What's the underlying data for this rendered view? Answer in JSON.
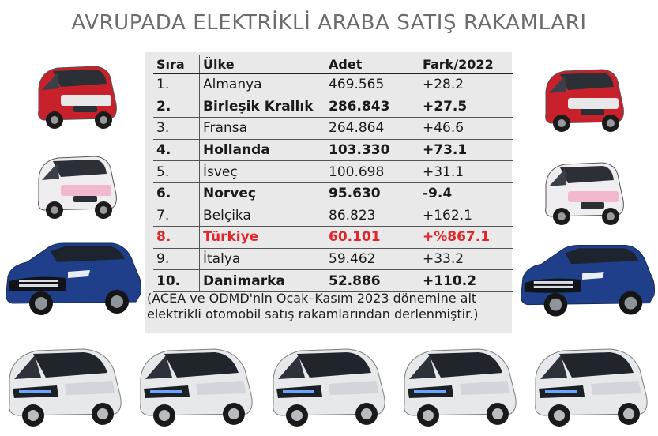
{
  "title": "AVRUPADA ELEKTRİKLİ ARABA SATIŞ RAKAMLARI",
  "table": {
    "headers": {
      "rank": "Sıra",
      "country": "Ülke",
      "count": "Adet",
      "diff": "Fark/2022"
    },
    "rows": [
      {
        "rank": "1.",
        "country": "Almanya",
        "count": "469.565",
        "diff": "+28.2",
        "style": "normal"
      },
      {
        "rank": "2.",
        "country": "Birleşik Krallık",
        "count": "286.843",
        "diff": "+27.5",
        "style": "bold"
      },
      {
        "rank": "3.",
        "country": "Fransa",
        "count": "264.864",
        "diff": "+46.6",
        "style": "normal"
      },
      {
        "rank": "4.",
        "country": "Hollanda",
        "count": "103.330",
        "diff": "+73.1",
        "style": "bold"
      },
      {
        "rank": "5.",
        "country": "İsveç",
        "count": "100.698",
        "diff": "+31.1",
        "style": "normal"
      },
      {
        "rank": "6.",
        "country": "Norveç",
        "count": "95.630",
        "diff": "-9.4",
        "style": "bold"
      },
      {
        "rank": "7.",
        "country": "Belçika",
        "count": "86.823",
        "diff": "+162.1",
        "style": "normal"
      },
      {
        "rank": "8.",
        "country": "Türkiye",
        "count": "60.101",
        "diff": "+%867.1",
        "style": "highlight"
      },
      {
        "rank": "9.",
        "country": "İtalya",
        "count": "59.462",
        "diff": "+33.2",
        "style": "normal"
      },
      {
        "rank": "10.",
        "country": "Danimarka",
        "count": "52.886",
        "diff": "+110.2",
        "style": "bold"
      }
    ]
  },
  "note": {
    "line1": "(ACEA ve ODMD'nin Ocak–Kasım 2023 dönemine ait",
    "line2": "elektrikli otomobil satış rakamlarından derlenmiştir.)"
  },
  "colors": {
    "highlight": "#e0262a",
    "red_car": "#c8212b",
    "pink_car": "#f2b8cf",
    "blue_suv": "#1f3f8a",
    "white_car": "#e4e6e8"
  },
  "images": [
    "red-microcar-left",
    "pink-microcar-left",
    "blue-suv-left",
    "red-microcar-right",
    "pink-microcar-right",
    "blue-suv-right",
    "white-microcar-1",
    "white-microcar-2",
    "white-microcar-3",
    "white-microcar-4",
    "white-microcar-5"
  ]
}
